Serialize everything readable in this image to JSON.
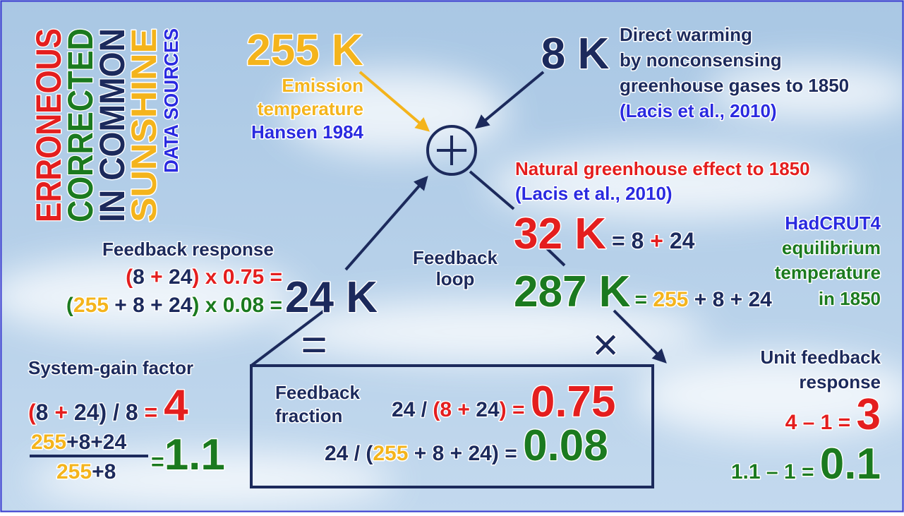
{
  "legend": [
    "ERRONEOUS",
    "CORRECTED",
    "IN COMMON",
    "SUNSHINE",
    "DATA SOURCES"
  ],
  "emission": {
    "value": "255 K",
    "label": [
      "Emission",
      "temperature"
    ],
    "source": "Hansen 1984"
  },
  "direct": {
    "value": "8 K",
    "label": [
      "Direct warming",
      "by nonconsensing",
      "greenhouse gases to 1850"
    ],
    "source": "(Lacis et al., 2010)"
  },
  "natural": {
    "label": "Natural greenhouse effect to 1850",
    "source": "(Lacis et al., 2010)",
    "value": "32 K",
    "equation": [
      "= 8",
      " + ",
      "24"
    ]
  },
  "equilibrium": {
    "value": "287 K",
    "equation": [
      "= ",
      "255",
      " + 8 + 24"
    ],
    "label": [
      "HadCRUT4",
      "equilibrium",
      "temperature",
      "in 1850"
    ]
  },
  "feedback_loop": [
    "Feedback",
    "loop"
  ],
  "feedback_response": {
    "title": "Feedback response",
    "line1": [
      "(",
      "8",
      " + ",
      "24",
      ") x 0.75 ="
    ],
    "line2": [
      "(",
      "255",
      " + 8 + 24",
      ") x 0.08 ="
    ],
    "value": "24 K"
  },
  "symbols": {
    "equals": "=",
    "times": "×"
  },
  "system_gain": {
    "title": "System-gain factor",
    "line1": [
      "(",
      "8",
      " + ",
      "24) / 8",
      " = ",
      "4"
    ],
    "numerator": [
      "255",
      "+8+24"
    ],
    "denominator": [
      "255",
      "+8"
    ],
    "result": [
      "=",
      "1.1"
    ]
  },
  "feedback_fraction": {
    "title": [
      "Feedback",
      "fraction"
    ],
    "line1": [
      "24 / ",
      "(8",
      " + ",
      "24",
      ")",
      " = ",
      "0.75"
    ],
    "line2": [
      "24 / (",
      "255",
      " + 8 + 24) = ",
      "0.08"
    ]
  },
  "unit_feedback": {
    "title": [
      "Unit feedback",
      "response"
    ],
    "line1": [
      "4 – 1 = ",
      "3"
    ],
    "line2": [
      "1.1 – 1 = ",
      "0.1"
    ]
  }
}
